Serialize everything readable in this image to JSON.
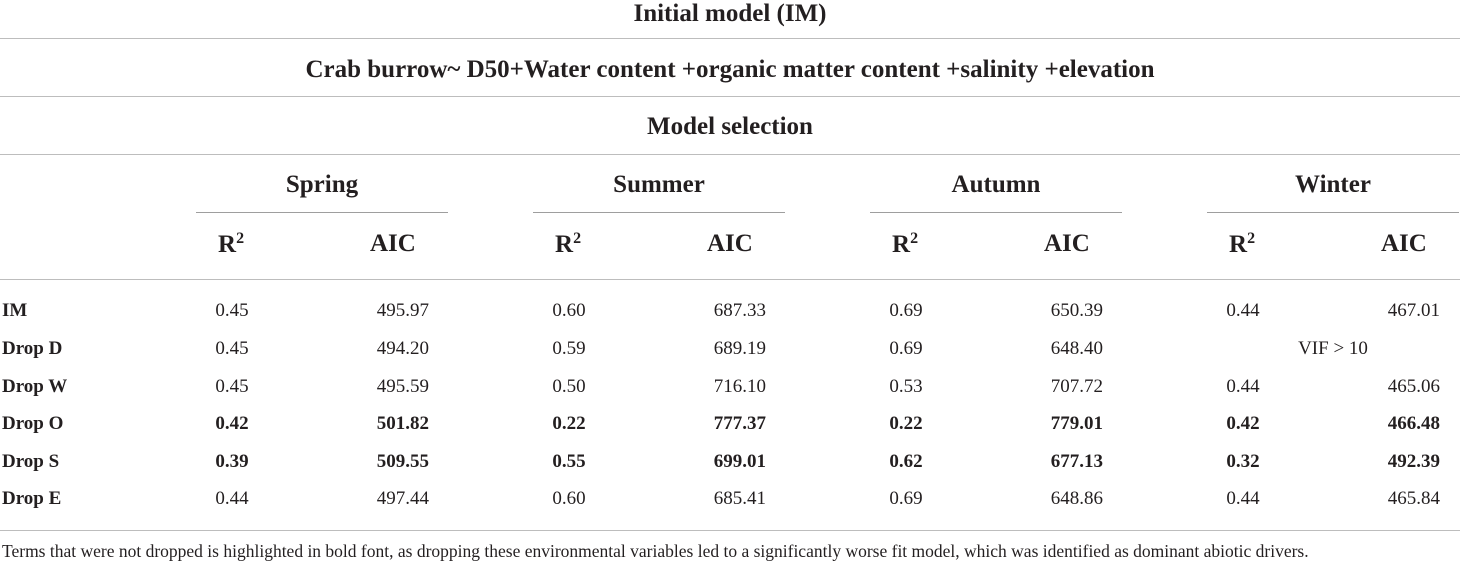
{
  "title_row": "Initial model (IM)",
  "formula_row": "Crab burrow~ D50+Water content +organic matter content +salinity +elevation",
  "selection_row": "Model selection",
  "seasons": [
    "Spring",
    "Summer",
    "Autumn",
    "Winter"
  ],
  "col_r2": "R",
  "col_r2_sup": "2",
  "col_aic": "AIC",
  "rows": [
    {
      "label": "IM",
      "bold": false,
      "values": [
        "0.45",
        "495.97",
        "0.60",
        "687.33",
        "0.69",
        "650.39",
        "0.44",
        "467.01"
      ]
    },
    {
      "label": "Drop D",
      "bold": false,
      "values": [
        "0.45",
        "494.20",
        "0.59",
        "689.19",
        "0.69",
        "648.40"
      ],
      "winter_note": "VIF > 10"
    },
    {
      "label": "Drop W",
      "bold": false,
      "values": [
        "0.45",
        "495.59",
        "0.50",
        "716.10",
        "0.53",
        "707.72",
        "0.44",
        "465.06"
      ]
    },
    {
      "label": "Drop O",
      "bold": true,
      "values": [
        "0.42",
        "501.82",
        "0.22",
        "777.37",
        "0.22",
        "779.01",
        "0.42",
        "466.48"
      ]
    },
    {
      "label": "Drop S",
      "bold": true,
      "values": [
        "0.39",
        "509.55",
        "0.55",
        "699.01",
        "0.62",
        "677.13",
        "0.32",
        "492.39"
      ]
    },
    {
      "label": "Drop E",
      "bold": false,
      "values": [
        "0.44",
        "497.44",
        "0.60",
        "685.41",
        "0.69",
        "648.86",
        "0.44",
        "465.84"
      ]
    }
  ],
  "footnote": "Terms that were not dropped is highlighted in bold font, as dropping these environmental variables led to a significantly worse fit model, which was identified as dominant abiotic drivers."
}
